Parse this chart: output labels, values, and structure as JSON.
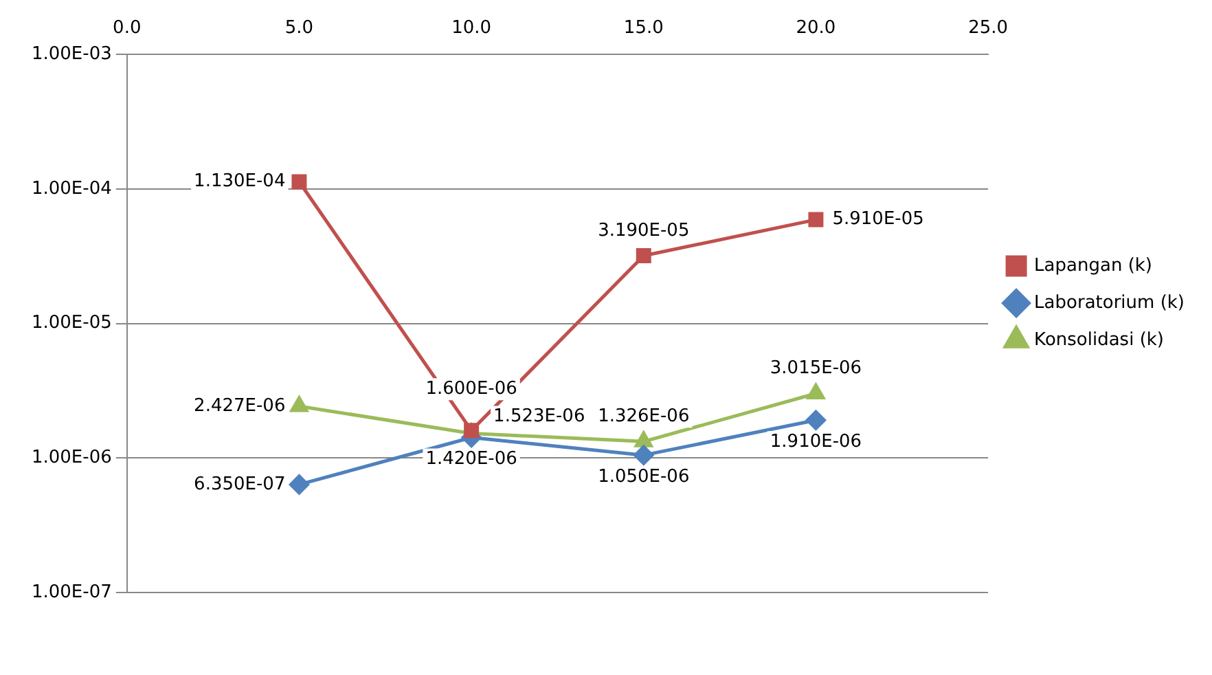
{
  "chart_data": {
    "type": "line",
    "log": "y",
    "grid": "y",
    "legend": "right",
    "data_labels": false,
    "xlim": [
      0,
      25
    ],
    "xticks": [
      {
        "value": 0,
        "label": "0.0"
      },
      {
        "value": 5,
        "label": "5.0"
      },
      {
        "value": 10,
        "label": "10.0"
      },
      {
        "value": 15,
        "label": "15.0"
      },
      {
        "value": 20,
        "label": "20.0"
      },
      {
        "value": 25,
        "label": "25.0"
      }
    ],
    "ylim": [
      1e-07,
      0.001
    ],
    "yticks": [
      {
        "value": 1e-07,
        "label": "1.00E-07"
      },
      {
        "value": 1e-06,
        "label": "1.00E-06"
      },
      {
        "value": 1e-05,
        "label": "1.00E-05"
      },
      {
        "value": 0.0001,
        "label": "1.00E-04"
      },
      {
        "value": 0.001,
        "label": "1.00E-03"
      }
    ],
    "x": [
      5,
      10,
      15,
      20
    ],
    "series": [
      {
        "name": "Lapangan (k)",
        "color": "#c0504d",
        "marker": "square",
        "values": [
          0.000113,
          1.6e-06,
          3.19e-05,
          5.91e-05
        ],
        "value_labels": [
          "1.130E-04",
          "1.600E-06",
          "3.190E-05",
          "5.910E-05"
        ]
      },
      {
        "name": "Laboratorium (k)",
        "color": "#4f81bd",
        "marker": "diamond",
        "values": [
          6.35e-07,
          1.42e-06,
          1.05e-06,
          1.91e-06
        ],
        "value_labels": [
          "6.350E-07",
          "1.420E-06",
          "1.050E-06",
          "1.910E-06"
        ]
      },
      {
        "name": "Konsolidasi (k)",
        "color": "#9bbb59",
        "marker": "triangle",
        "values": [
          2.427e-06,
          1.523e-06,
          1.326e-06,
          3.015e-06
        ],
        "value_labels": [
          "2.427E-06",
          "1.523E-06",
          "1.326E-06",
          "3.015E-06"
        ]
      }
    ]
  }
}
